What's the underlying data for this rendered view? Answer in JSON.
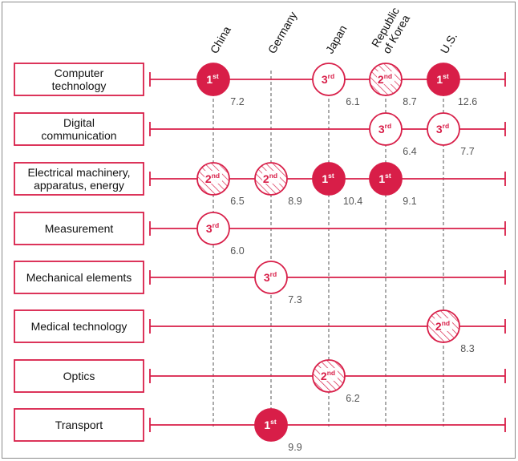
{
  "chart_data": {
    "type": "dot-matrix",
    "title": "",
    "countries": [
      [
        "China"
      ],
      [
        "Germany"
      ],
      [
        "Japan"
      ],
      [
        "Republic",
        "of Korea"
      ],
      [
        "U.S."
      ]
    ],
    "categories": [
      [
        "Computer",
        "technology"
      ],
      [
        "Digital",
        "communication"
      ],
      [
        "Electrical machinery,",
        "apparatus, energy"
      ],
      [
        "Measurement"
      ],
      [
        "Mechanical elements"
      ],
      [
        "Medical technology"
      ],
      [
        "Optics"
      ],
      [
        "Transport"
      ]
    ],
    "entries": [
      {
        "category": 0,
        "country": 0,
        "rank": 1,
        "rank_label": "1",
        "rank_suffix": "st",
        "value": "7.2"
      },
      {
        "category": 0,
        "country": 2,
        "rank": 3,
        "rank_label": "3",
        "rank_suffix": "rd",
        "value": "6.1"
      },
      {
        "category": 0,
        "country": 3,
        "rank": 2,
        "rank_label": "2",
        "rank_suffix": "nd",
        "value": "8.7"
      },
      {
        "category": 0,
        "country": 4,
        "rank": 1,
        "rank_label": "1",
        "rank_suffix": "st",
        "value": "12.6"
      },
      {
        "category": 1,
        "country": 3,
        "rank": 3,
        "rank_label": "3",
        "rank_suffix": "rd",
        "value": "6.4"
      },
      {
        "category": 1,
        "country": 4,
        "rank": 3,
        "rank_label": "3",
        "rank_suffix": "rd",
        "value": "7.7"
      },
      {
        "category": 2,
        "country": 0,
        "rank": 2,
        "rank_label": "2",
        "rank_suffix": "nd",
        "value": "6.5"
      },
      {
        "category": 2,
        "country": 1,
        "rank": 2,
        "rank_label": "2",
        "rank_suffix": "nd",
        "value": "8.9"
      },
      {
        "category": 2,
        "country": 2,
        "rank": 1,
        "rank_label": "1",
        "rank_suffix": "st",
        "value": "10.4"
      },
      {
        "category": 2,
        "country": 3,
        "rank": 1,
        "rank_label": "1",
        "rank_suffix": "st",
        "value": "9.1"
      },
      {
        "category": 3,
        "country": 0,
        "rank": 3,
        "rank_label": "3",
        "rank_suffix": "rd",
        "value": "6.0"
      },
      {
        "category": 4,
        "country": 1,
        "rank": 3,
        "rank_label": "3",
        "rank_suffix": "rd",
        "value": "7.3"
      },
      {
        "category": 5,
        "country": 4,
        "rank": 2,
        "rank_label": "2",
        "rank_suffix": "nd",
        "value": "8.3"
      },
      {
        "category": 6,
        "country": 2,
        "rank": 2,
        "rank_label": "2",
        "rank_suffix": "nd",
        "value": "6.2"
      },
      {
        "category": 7,
        "country": 1,
        "rank": 1,
        "rank_label": "1",
        "rank_suffix": "st",
        "value": "9.9"
      }
    ],
    "colors": {
      "accent": "#d81e48",
      "text": "#111111",
      "value_text": "#555555",
      "dashed_guide": "#555555",
      "frame": "#8a8a8a"
    }
  }
}
